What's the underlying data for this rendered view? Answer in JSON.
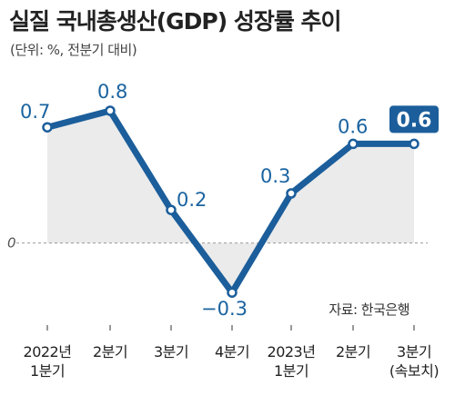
{
  "title": "실질 국내총생산(GDP) 성장률 추이",
  "subtitle": "(단위: %, 전분기 대비)",
  "source": "자료: 한국은행",
  "chart_data": {
    "type": "line",
    "title": "실질 국내총생산(GDP) 성장률 추이",
    "subtitle": "(단위: %, 전분기 대비)",
    "categories": [
      [
        "2022년",
        "1분기"
      ],
      [
        "2분기"
      ],
      [
        "3분기"
      ],
      [
        "4분기"
      ],
      [
        "2023년",
        "1분기"
      ],
      [
        "2분기"
      ],
      [
        "3분기",
        "(속보치)"
      ]
    ],
    "values": [
      0.7,
      0.8,
      0.2,
      -0.3,
      0.3,
      0.6,
      0.6
    ],
    "value_labels": [
      "0.7",
      "0.8",
      "0.2",
      "−0.3",
      "0.3",
      "0.6",
      "0.6"
    ],
    "zero_label": "0",
    "highlight_index": 6,
    "ylim": [
      -0.4,
      0.9
    ],
    "grid": false,
    "legend": "none",
    "colors": {
      "line": "#1b5e9b",
      "area": "#ebebeb",
      "label": "#1a63a0",
      "badge": "#1b5e9b",
      "zero_line": "#999999"
    }
  }
}
